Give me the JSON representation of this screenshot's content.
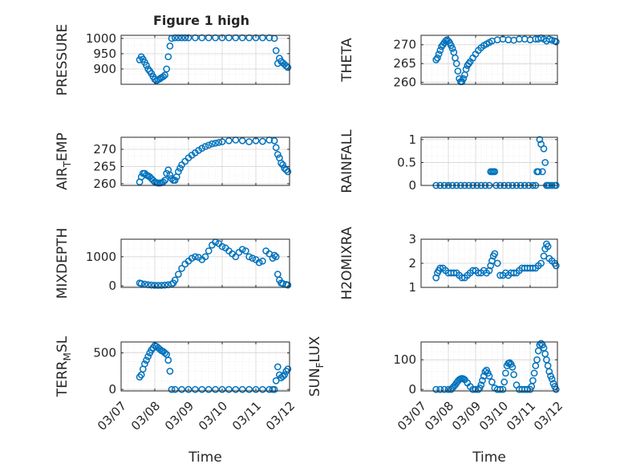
{
  "figure": {
    "title": "Figure 1 high",
    "xlabel": "Time"
  },
  "style": {
    "marker_color": "#0072BD",
    "axis_color": "#262626",
    "grid_color": "#d9d9d9",
    "background": "#ffffff"
  },
  "chart_data": [
    {
      "type": "scatter",
      "title": "Figure 1 high",
      "ylabel": "PRESSURE",
      "ylabel_sub": "",
      "ylabel_rest": "",
      "xlabel": "",
      "xlim": [
        0,
        5
      ],
      "ylim": [
        850,
        1010
      ],
      "yticks": [
        900,
        950,
        1000
      ],
      "xtick_labels": [],
      "grid": true,
      "x": [
        0.55,
        0.6,
        0.65,
        0.7,
        0.75,
        0.8,
        0.85,
        0.9,
        0.95,
        1.0,
        1.05,
        1.1,
        1.15,
        1.2,
        1.25,
        1.3,
        1.35,
        1.4,
        1.45,
        1.5,
        1.6,
        1.7,
        1.8,
        1.9,
        2.0,
        2.2,
        2.4,
        2.6,
        2.8,
        3.0,
        3.2,
        3.4,
        3.6,
        3.8,
        4.0,
        4.2,
        4.4,
        4.55,
        4.6,
        4.65,
        4.7,
        4.75,
        4.8,
        4.85,
        4.9,
        4.95
      ],
      "y": [
        930,
        940,
        932,
        922,
        912,
        900,
        893,
        885,
        875,
        866,
        862,
        865,
        868,
        872,
        875,
        880,
        900,
        940,
        975,
        1000,
        1002,
        1002,
        1002,
        1002,
        1002,
        1002,
        1002,
        1002,
        1002,
        1002,
        1002,
        1002,
        1002,
        1002,
        1002,
        1002,
        1002,
        1000,
        960,
        918,
        935,
        925,
        920,
        915,
        910,
        905
      ]
    },
    {
      "type": "scatter",
      "ylabel": "THETA",
      "ylabel_sub": "",
      "ylabel_rest": "",
      "xlabel": "",
      "xlim": [
        0,
        5
      ],
      "ylim": [
        259.5,
        272.5
      ],
      "yticks": [
        260,
        265,
        270
      ],
      "xtick_labels": [],
      "grid": true,
      "x": [
        0.55,
        0.6,
        0.65,
        0.7,
        0.75,
        0.8,
        0.85,
        0.9,
        0.95,
        1.0,
        1.05,
        1.1,
        1.15,
        1.2,
        1.25,
        1.3,
        1.35,
        1.4,
        1.45,
        1.5,
        1.55,
        1.6,
        1.65,
        1.7,
        1.75,
        1.8,
        1.9,
        2.0,
        2.1,
        2.2,
        2.3,
        2.4,
        2.5,
        2.6,
        2.8,
        3.0,
        3.2,
        3.4,
        3.6,
        3.8,
        4.0,
        4.2,
        4.3,
        4.4,
        4.5,
        4.6,
        4.7,
        4.8,
        4.9,
        4.95
      ],
      "y": [
        266,
        266.5,
        267.5,
        268.5,
        269.5,
        270,
        270.5,
        271,
        271.3,
        271,
        270.5,
        269.8,
        269,
        268,
        266.5,
        265,
        263,
        261,
        260.2,
        260.2,
        261,
        262,
        263.5,
        264.5,
        265,
        265.5,
        266.5,
        267.5,
        268.5,
        269.2,
        269.8,
        270.2,
        270.6,
        271,
        271.3,
        271.5,
        271.3,
        271.2,
        271.5,
        271.5,
        271.3,
        271.5,
        271.5,
        271.8,
        271.5,
        271,
        271.5,
        271.2,
        271,
        270.8
      ]
    },
    {
      "type": "scatter",
      "ylabel": "AIR",
      "ylabel_sub": "T",
      "ylabel_rest": "EMP",
      "xlabel": "",
      "xlim": [
        0,
        5
      ],
      "ylim": [
        259.5,
        273.5
      ],
      "yticks": [
        260,
        265,
        270
      ],
      "xtick_labels": [],
      "grid": true,
      "x": [
        0.55,
        0.6,
        0.65,
        0.7,
        0.75,
        0.8,
        0.85,
        0.9,
        0.95,
        1.0,
        1.05,
        1.1,
        1.15,
        1.2,
        1.25,
        1.3,
        1.35,
        1.4,
        1.45,
        1.5,
        1.55,
        1.6,
        1.65,
        1.7,
        1.75,
        1.8,
        1.9,
        2.0,
        2.1,
        2.2,
        2.3,
        2.4,
        2.5,
        2.6,
        2.7,
        2.8,
        2.9,
        3.0,
        3.2,
        3.4,
        3.6,
        3.8,
        4.0,
        4.2,
        4.4,
        4.55,
        4.6,
        4.65,
        4.7,
        4.75,
        4.8,
        4.85,
        4.9,
        4.95
      ],
      "y": [
        260.5,
        262,
        263,
        263,
        262.5,
        262.3,
        262,
        261.5,
        261,
        260.5,
        260.3,
        260.2,
        260.2,
        260.3,
        260.5,
        261,
        263,
        264,
        262.5,
        261.5,
        261,
        261,
        262,
        263.5,
        264.5,
        265.5,
        266.5,
        267.5,
        268.3,
        269,
        269.7,
        270.3,
        270.8,
        271.2,
        271.6,
        271.8,
        272,
        272.2,
        272.5,
        272.7,
        272.5,
        272.2,
        272.5,
        272.3,
        272.7,
        272.5,
        270.5,
        268.5,
        267.5,
        266,
        265.5,
        264.5,
        264,
        263.5
      ]
    },
    {
      "type": "scatter",
      "ylabel": "RAINFALL",
      "ylabel_sub": "",
      "ylabel_rest": "",
      "xlabel": "",
      "xlim": [
        0,
        5
      ],
      "ylim": [
        0,
        1.05
      ],
      "yticks": [
        0,
        0.5,
        1
      ],
      "xtick_labels": [],
      "grid": true,
      "x": [
        0.55,
        0.7,
        0.85,
        1.0,
        1.15,
        1.3,
        1.45,
        1.6,
        1.75,
        1.9,
        2.05,
        2.2,
        2.35,
        2.5,
        2.55,
        2.6,
        2.65,
        2.7,
        2.75,
        2.9,
        3.05,
        3.2,
        3.35,
        3.5,
        3.65,
        3.8,
        3.95,
        4.1,
        4.2,
        4.25,
        4.3,
        4.35,
        4.4,
        4.45,
        4.5,
        4.55,
        4.6,
        4.65,
        4.7,
        4.8,
        4.9,
        4.95
      ],
      "y": [
        0,
        0,
        0,
        0,
        0,
        0,
        0,
        0,
        0,
        0,
        0,
        0,
        0,
        0,
        0.3,
        0.3,
        0.3,
        0.3,
        0,
        0,
        0,
        0,
        0,
        0,
        0,
        0,
        0,
        0,
        0,
        0.3,
        0.3,
        1.0,
        0.9,
        0.3,
        0.8,
        0.5,
        0,
        0,
        0,
        0,
        0,
        0
      ]
    },
    {
      "type": "scatter",
      "ylabel": "MIXDEPTH",
      "ylabel_sub": "",
      "ylabel_rest": "",
      "xlabel": "",
      "xlim": [
        0,
        5
      ],
      "ylim": [
        -50,
        1600
      ],
      "yticks": [
        0,
        1000
      ],
      "xtick_labels": [],
      "grid": true,
      "x": [
        0.55,
        0.6,
        0.7,
        0.8,
        0.9,
        1.0,
        1.1,
        1.2,
        1.3,
        1.4,
        1.5,
        1.55,
        1.6,
        1.7,
        1.8,
        1.9,
        2.0,
        2.1,
        2.2,
        2.3,
        2.4,
        2.5,
        2.6,
        2.7,
        2.8,
        2.9,
        3.0,
        3.1,
        3.2,
        3.3,
        3.4,
        3.5,
        3.6,
        3.7,
        3.8,
        3.9,
        4.0,
        4.1,
        4.2,
        4.3,
        4.4,
        4.5,
        4.55,
        4.6,
        4.65,
        4.7,
        4.75,
        4.8,
        4.9,
        4.95
      ],
      "y": [
        100,
        80,
        60,
        40,
        30,
        20,
        20,
        20,
        30,
        40,
        60,
        100,
        200,
        400,
        600,
        750,
        850,
        950,
        1000,
        980,
        900,
        1000,
        1200,
        1400,
        1500,
        1450,
        1350,
        1300,
        1200,
        1100,
        1000,
        1150,
        1250,
        1200,
        1000,
        950,
        900,
        800,
        850,
        1200,
        1100,
        950,
        1050,
        1000,
        400,
        200,
        100,
        80,
        50,
        30
      ]
    },
    {
      "type": "scatter",
      "ylabel": "H2OMIXRA",
      "ylabel_sub": "",
      "ylabel_rest": "",
      "xlabel": "",
      "xlim": [
        0,
        5
      ],
      "ylim": [
        1,
        3
      ],
      "yticks": [
        1,
        2,
        3
      ],
      "xtick_labels": [],
      "grid": true,
      "x": [
        0.55,
        0.6,
        0.65,
        0.7,
        0.8,
        0.9,
        1.0,
        1.1,
        1.2,
        1.3,
        1.4,
        1.5,
        1.6,
        1.7,
        1.8,
        1.9,
        2.0,
        2.1,
        2.2,
        2.3,
        2.4,
        2.5,
        2.55,
        2.6,
        2.65,
        2.7,
        2.8,
        2.9,
        3.0,
        3.1,
        3.2,
        3.3,
        3.4,
        3.5,
        3.6,
        3.7,
        3.8,
        3.9,
        4.0,
        4.1,
        4.2,
        4.3,
        4.4,
        4.5,
        4.55,
        4.6,
        4.65,
        4.7,
        4.8,
        4.9,
        4.95
      ],
      "y": [
        1.4,
        1.6,
        1.7,
        1.8,
        1.8,
        1.7,
        1.6,
        1.6,
        1.6,
        1.6,
        1.5,
        1.4,
        1.4,
        1.5,
        1.6,
        1.7,
        1.7,
        1.6,
        1.6,
        1.7,
        1.6,
        1.7,
        1.9,
        2.1,
        2.3,
        2.4,
        2.0,
        1.5,
        1.5,
        1.6,
        1.5,
        1.6,
        1.6,
        1.6,
        1.7,
        1.8,
        1.8,
        1.8,
        1.8,
        1.8,
        1.8,
        1.9,
        2.0,
        2.3,
        2.6,
        2.8,
        2.7,
        2.2,
        2.1,
        2.0,
        1.9
      ]
    },
    {
      "type": "scatter",
      "ylabel": "TERR",
      "ylabel_sub": "M",
      "ylabel_rest": "SL",
      "xlabel": "Time",
      "xlim": [
        0,
        5
      ],
      "ylim": [
        -20,
        650
      ],
      "yticks": [
        0,
        500
      ],
      "xtick_labels": [
        "03/07",
        "03/08",
        "03/09",
        "03/10",
        "03/11",
        "03/12"
      ],
      "grid": true,
      "x": [
        0.55,
        0.6,
        0.65,
        0.7,
        0.75,
        0.8,
        0.85,
        0.9,
        0.95,
        1.0,
        1.05,
        1.1,
        1.15,
        1.2,
        1.25,
        1.3,
        1.35,
        1.4,
        1.45,
        1.5,
        1.6,
        1.8,
        2.0,
        2.2,
        2.4,
        2.6,
        2.8,
        3.0,
        3.2,
        3.4,
        3.6,
        3.8,
        4.0,
        4.2,
        4.4,
        4.5,
        4.55,
        4.6,
        4.65,
        4.7,
        4.75,
        4.8,
        4.85,
        4.9,
        4.95
      ],
      "y": [
        170,
        200,
        280,
        350,
        400,
        450,
        500,
        540,
        570,
        600,
        590,
        570,
        550,
        530,
        520,
        500,
        480,
        400,
        250,
        0,
        0,
        0,
        0,
        0,
        0,
        0,
        0,
        0,
        0,
        0,
        0,
        0,
        0,
        0,
        0,
        0,
        0,
        120,
        310,
        200,
        160,
        180,
        200,
        250,
        280
      ]
    },
    {
      "type": "scatter",
      "ylabel": "SUN",
      "ylabel_sub": "F",
      "ylabel_rest": "LUX",
      "xlabel": "Time",
      "xlim": [
        0,
        5
      ],
      "ylim": [
        -5,
        160
      ],
      "yticks": [
        0,
        100
      ],
      "xtick_labels": [
        "03/07",
        "03/08",
        "03/09",
        "03/10",
        "03/11",
        "03/12"
      ],
      "grid": true,
      "x": [
        0.55,
        0.7,
        0.85,
        1.0,
        1.1,
        1.15,
        1.2,
        1.25,
        1.3,
        1.35,
        1.4,
        1.45,
        1.5,
        1.55,
        1.6,
        1.7,
        1.8,
        1.9,
        2.0,
        2.1,
        2.15,
        2.2,
        2.25,
        2.3,
        2.35,
        2.4,
        2.45,
        2.5,
        2.6,
        2.7,
        2.8,
        2.9,
        3.0,
        3.05,
        3.1,
        3.15,
        3.2,
        3.25,
        3.3,
        3.35,
        3.4,
        3.5,
        3.6,
        3.7,
        3.8,
        3.9,
        4.0,
        4.05,
        4.1,
        4.15,
        4.2,
        4.25,
        4.3,
        4.35,
        4.4,
        4.45,
        4.5,
        4.55,
        4.6,
        4.65,
        4.7,
        4.75,
        4.8,
        4.85,
        4.9,
        4.95
      ],
      "y": [
        0,
        0,
        0,
        0,
        0,
        5,
        10,
        15,
        22,
        28,
        33,
        36,
        37,
        36,
        33,
        22,
        10,
        0,
        0,
        0,
        5,
        15,
        30,
        45,
        60,
        65,
        55,
        45,
        25,
        5,
        0,
        0,
        0,
        25,
        55,
        80,
        88,
        90,
        85,
        75,
        50,
        15,
        0,
        0,
        0,
        0,
        0,
        10,
        30,
        55,
        80,
        100,
        130,
        150,
        155,
        150,
        140,
        120,
        100,
        80,
        60,
        45,
        35,
        20,
        10,
        0
      ]
    }
  ]
}
